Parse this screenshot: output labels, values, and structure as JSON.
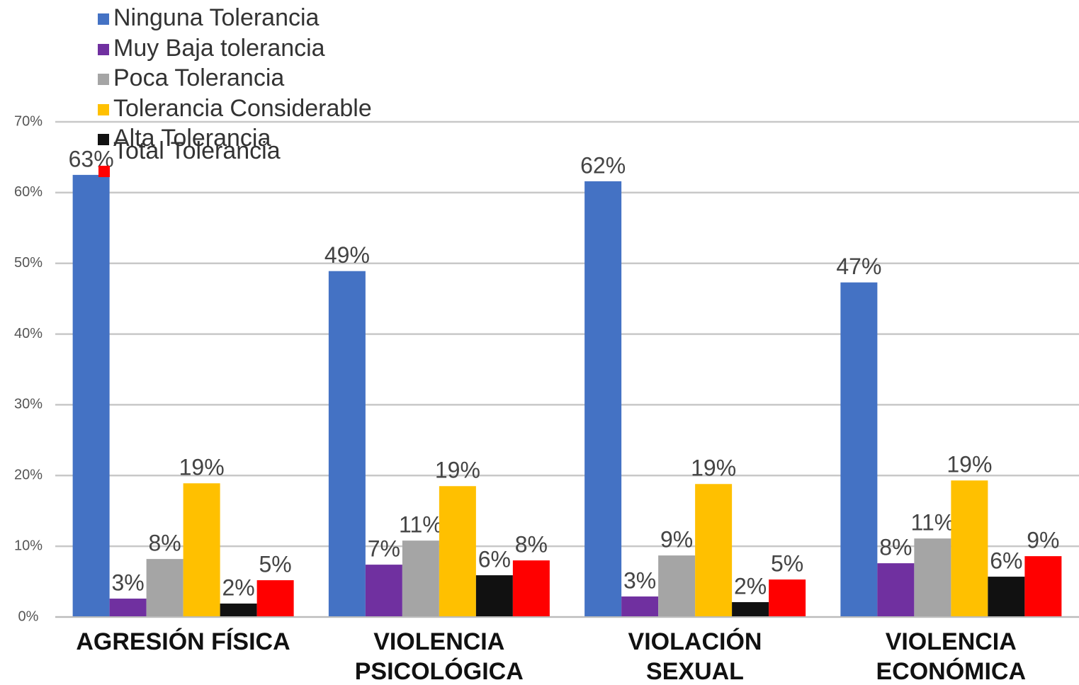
{
  "chart_data": {
    "type": "bar",
    "categories": [
      "AGRESIÓN FÍSICA",
      "VIOLENCIA\nPSICOLÓGICA",
      "VIOLACIÓN\nSEXUAL",
      "VIOLENCIA\nECONÓMICA"
    ],
    "series": [
      {
        "name": "Ninguna Tolerancia",
        "color": "#4472c4",
        "values": [
          62.5,
          48.9,
          61.6,
          47.3
        ],
        "value_labels": [
          "63%",
          "49%",
          "62%",
          "47%"
        ]
      },
      {
        "name": "Muy Baja tolerancia",
        "color": "#7030a0",
        "values": [
          2.6,
          7.4,
          2.9,
          7.6
        ],
        "value_labels": [
          "3%",
          "7%",
          "3%",
          "8%"
        ]
      },
      {
        "name": "Poca Tolerancia",
        "color": "#a5a5a5",
        "values": [
          8.2,
          10.8,
          8.7,
          11.1
        ],
        "value_labels": [
          "8%",
          "11%",
          "9%",
          "11%"
        ]
      },
      {
        "name": "Tolerancia Considerable",
        "color": "#ffc000",
        "values": [
          18.9,
          18.5,
          18.8,
          19.3
        ],
        "value_labels": [
          "19%",
          "19%",
          "19%",
          "19%"
        ]
      },
      {
        "name": "Alta Tolerancia",
        "color": "#111111",
        "values": [
          1.9,
          5.9,
          2.1,
          5.7
        ],
        "value_labels": [
          "2%",
          "6%",
          "2%",
          "6%"
        ]
      },
      {
        "name": "Total Tolerancia",
        "color": "#ff0000",
        "values": [
          5.2,
          8.0,
          5.3,
          8.6
        ],
        "value_labels": [
          "5%",
          "8%",
          "5%",
          "9%"
        ]
      }
    ],
    "ylim": [
      0,
      70
    ],
    "yticks": [
      {
        "value": 0,
        "label": "0%"
      },
      {
        "value": 10,
        "label": "10%"
      },
      {
        "value": 20,
        "label": "20%"
      },
      {
        "value": 30,
        "label": "30%"
      },
      {
        "value": 40,
        "label": "40%"
      },
      {
        "value": 50,
        "label": "50%"
      },
      {
        "value": 60,
        "label": "60%"
      },
      {
        "value": 70,
        "label": "70%"
      }
    ],
    "grid": true,
    "legend": "top-left"
  }
}
